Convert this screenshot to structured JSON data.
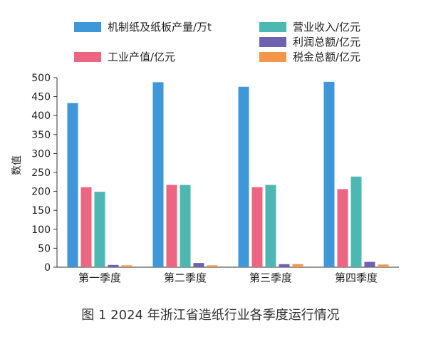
{
  "chart_data": {
    "type": "bar",
    "caption": "图 1   2024 年浙江省造纸行业各季度运行情况",
    "ylabel": "数值",
    "xlabel": "",
    "ylim": [
      0,
      500
    ],
    "yticks": [
      0,
      50,
      100,
      150,
      200,
      250,
      300,
      350,
      400,
      450,
      500
    ],
    "categories": [
      "第一季度",
      "第二季度",
      "第三季度",
      "第四季度"
    ],
    "legend_position": "top",
    "series": [
      {
        "name": "机制纸及纸板产量/万t",
        "color": "#3e97d8",
        "values": [
          433,
          488,
          476,
          489
        ]
      },
      {
        "name": "工业产值/亿元",
        "color": "#ee6581",
        "values": [
          211,
          217,
          211,
          206
        ]
      },
      {
        "name": "营业收入/亿元",
        "color": "#4db8b1",
        "values": [
          199,
          217,
          217,
          239
        ]
      },
      {
        "name": "利润总额/亿元",
        "color": "#6e62b0",
        "values": [
          6,
          11,
          8,
          14
        ]
      },
      {
        "name": "税金总额/亿元",
        "color": "#f4954c",
        "values": [
          5,
          5,
          8,
          7
        ]
      }
    ]
  }
}
